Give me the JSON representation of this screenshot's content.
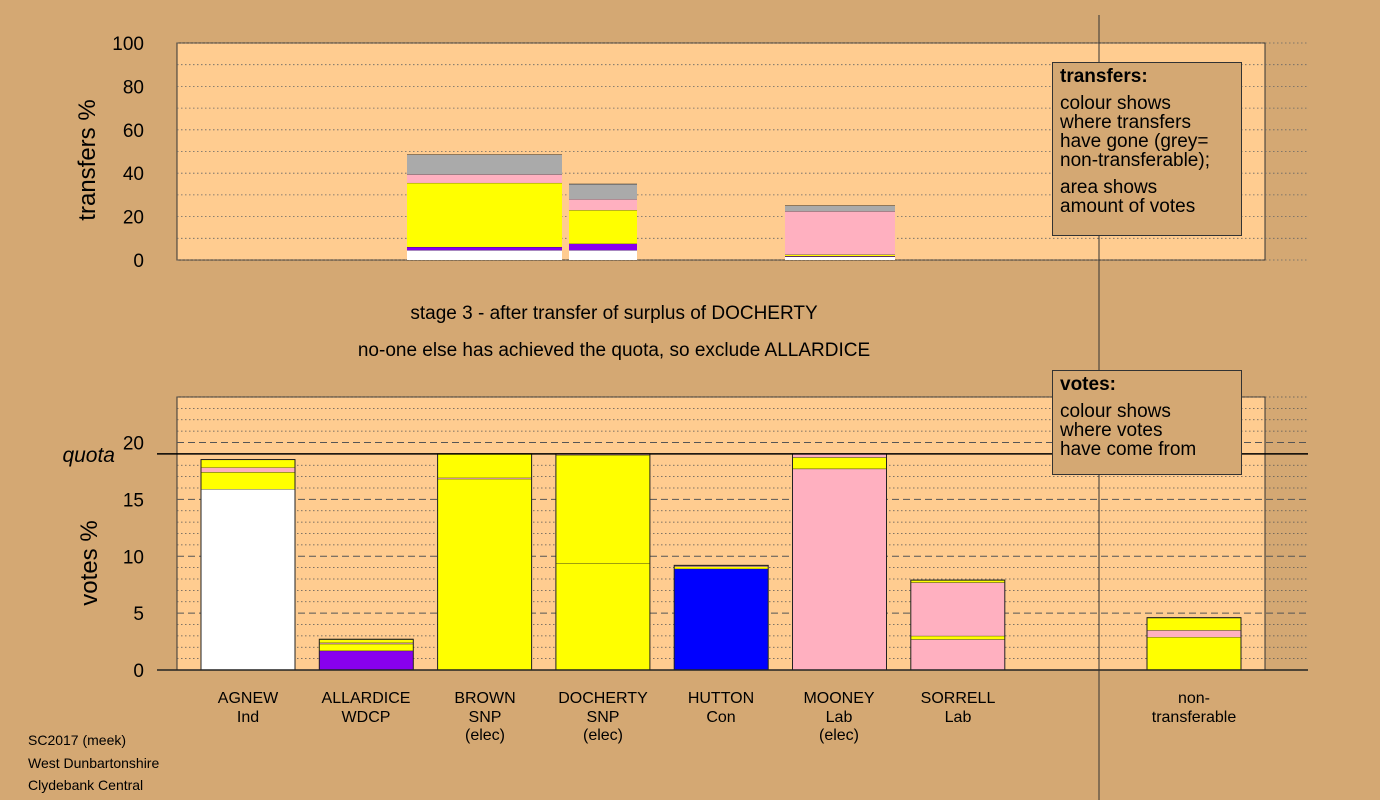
{
  "footer": {
    "line1": "SC2017 (meek)",
    "line2": "West Dunbartonshire",
    "line3": "Clydebank Central"
  },
  "stage": {
    "line1": "stage 3 - after transfer of surplus of DOCHERTY",
    "line2": "no-one else has achieved the quota, so exclude ALLARDICE"
  },
  "legend_transfers": {
    "title": "transfers:",
    "p1_lines": [
      "colour shows",
      "where transfers",
      "have gone (grey=",
      "non-transferable);"
    ],
    "p2_lines": [
      "area shows",
      "amount of votes"
    ]
  },
  "legend_votes": {
    "title": "votes:",
    "lines": [
      "colour shows",
      "where votes",
      "have come from"
    ]
  },
  "colors": {
    "background": "#d4a873",
    "plot_bg": "#ffcc90",
    "independent": "#ffffff",
    "wdcp": "#8800ee",
    "snp": "#ffff00",
    "conservative": "#0000ff",
    "labour": "#ffb0c0",
    "non_transferable": "#aaaaaa"
  },
  "chart_data": [
    {
      "type": "bar",
      "title": "",
      "ylabel": "transfers %",
      "ylim": [
        0,
        100
      ],
      "yticks": [
        0,
        20,
        40,
        60,
        80,
        100
      ],
      "grid": true,
      "bars": [
        {
          "segments": [
            {
              "color": "#ffffff",
              "value": 4.5
            },
            {
              "color": "#8800ee",
              "value": 1.5
            },
            {
              "color": "#ffff00",
              "value": 29.5
            },
            {
              "color": "#ffb0c0",
              "value": 4.0
            },
            {
              "color": "#aaaaaa",
              "value": 9.0
            }
          ]
        },
        {
          "segments": [
            {
              "color": "#ffffff",
              "value": 4.5
            },
            {
              "color": "#8800ee",
              "value": 3.0
            },
            {
              "color": "#ffff00",
              "value": 15.5
            },
            {
              "color": "#ffb0c0",
              "value": 5.0
            },
            {
              "color": "#aaaaaa",
              "value": 7.0
            }
          ]
        },
        {
          "segments": [
            {
              "color": "#ffffff",
              "value": 1.5
            },
            {
              "color": "#8800ee",
              "value": 0.3
            },
            {
              "color": "#ffff00",
              "value": 0.7
            },
            {
              "color": "#ffb0c0",
              "value": 20.0
            },
            {
              "color": "#aaaaaa",
              "value": 2.5
            }
          ]
        }
      ]
    },
    {
      "type": "bar",
      "title": "",
      "ylabel": "votes %",
      "ylim": [
        0,
        24
      ],
      "yticks": [
        0,
        5,
        10,
        15,
        20
      ],
      "quota": 19.0,
      "quota_label": "quota",
      "grid": true,
      "categories": [
        {
          "name": "AGNEW",
          "party": "Ind",
          "status": ""
        },
        {
          "name": "ALLARDICE",
          "party": "WDCP",
          "status": ""
        },
        {
          "name": "BROWN",
          "party": "SNP",
          "status": "(elec)"
        },
        {
          "name": "DOCHERTY",
          "party": "SNP",
          "status": "(elec)"
        },
        {
          "name": "HUTTON",
          "party": "Con",
          "status": ""
        },
        {
          "name": "MOONEY",
          "party": "Lab",
          "status": "(elec)"
        },
        {
          "name": "SORRELL",
          "party": "Lab",
          "status": ""
        }
      ],
      "non_transferable_label": [
        "non-",
        "transferable"
      ],
      "bars": [
        {
          "segments": [
            {
              "color": "#ffffff",
              "value": 15.9
            },
            {
              "color": "#ffff00",
              "value": 1.5
            },
            {
              "color": "#ffb0c0",
              "value": 0.4
            },
            {
              "color": "#ffff00",
              "value": 0.7
            }
          ]
        },
        {
          "segments": [
            {
              "color": "#8800ee",
              "value": 1.7
            },
            {
              "color": "#ffff00",
              "value": 0.6
            },
            {
              "color": "#ffb0c0",
              "value": 0.1
            },
            {
              "color": "#ffff00",
              "value": 0.3
            }
          ]
        },
        {
          "segments": [
            {
              "color": "#ffff00",
              "value": 16.8
            },
            {
              "color": "#ffb0c0",
              "value": 0.1
            },
            {
              "color": "#ffff00",
              "value": 2.1
            }
          ]
        },
        {
          "segments": [
            {
              "color": "#ffff00",
              "value": 9.4
            },
            {
              "color": "#ffff00",
              "value": 9.5
            },
            {
              "color": "#ffb0c0",
              "value": 0.1
            }
          ]
        },
        {
          "segments": [
            {
              "color": "#0000ff",
              "value": 8.9
            },
            {
              "color": "#ffff00",
              "value": 0.2
            },
            {
              "color": "#ffb0c0",
              "value": 0.1
            }
          ]
        },
        {
          "segments": [
            {
              "color": "#ffb0c0",
              "value": 17.7
            },
            {
              "color": "#ffff00",
              "value": 1.0
            },
            {
              "color": "#ffb0c0",
              "value": 0.3
            }
          ]
        },
        {
          "segments": [
            {
              "color": "#ffb0c0",
              "value": 2.7
            },
            {
              "color": "#ffff00",
              "value": 0.3
            },
            {
              "color": "#ffb0c0",
              "value": 4.7
            },
            {
              "color": "#ffff00",
              "value": 0.2
            }
          ]
        },
        {
          "segments": [
            {
              "color": "#ffff00",
              "value": 2.9
            },
            {
              "color": "#ffb0c0",
              "value": 0.6
            },
            {
              "color": "#ffff00",
              "value": 1.1
            }
          ]
        }
      ]
    }
  ]
}
